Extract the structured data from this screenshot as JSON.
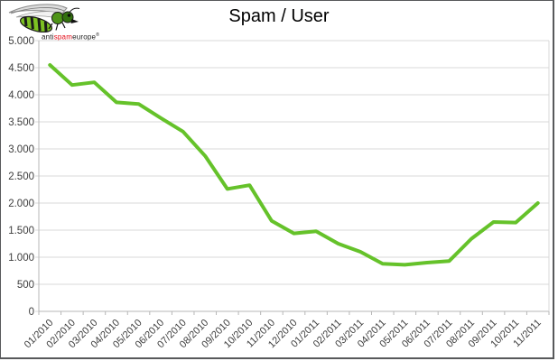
{
  "header": {
    "title": "Spam / User"
  },
  "logo": {
    "brand_prefix": "anti",
    "brand_mid": "spam",
    "brand_suffix": "europe",
    "registered_mark": "®",
    "icon": "hornet-logo-icon"
  },
  "chart_data": {
    "type": "line",
    "title": "Spam / User",
    "categories": [
      "01/2010",
      "02/2010",
      "03/2010",
      "04/2010",
      "05/2010",
      "06/2010",
      "07/2010",
      "08/2010",
      "09/2010",
      "10/2010",
      "11/2010",
      "12/2010",
      "01/2011",
      "02/2011",
      "03/2011",
      "04/2011",
      "05/2011",
      "06/2011",
      "07/2011",
      "08/2011",
      "09/2011",
      "10/2011",
      "11/2011"
    ],
    "values": [
      4550,
      4180,
      4230,
      3860,
      3830,
      3570,
      3320,
      2870,
      2260,
      2330,
      1670,
      1440,
      1480,
      1250,
      1100,
      880,
      860,
      900,
      930,
      1340,
      1650,
      1640,
      2000
    ],
    "xlabel": "",
    "ylabel": "",
    "ylim": [
      0,
      5000
    ],
    "ytick_step": 500,
    "ytick_labels": [
      "0",
      "500",
      "1.000",
      "1.500",
      "2.000",
      "2.500",
      "3.000",
      "3.500",
      "4.000",
      "4.500",
      "5.000"
    ],
    "grid": true,
    "legend": "none",
    "x_label_rotation_deg": -45,
    "line_color": "#65c22a",
    "gridline_color": "#d9d9d9",
    "axis_color": "#b7b7b7",
    "label_color": "#3d3d3d"
  }
}
